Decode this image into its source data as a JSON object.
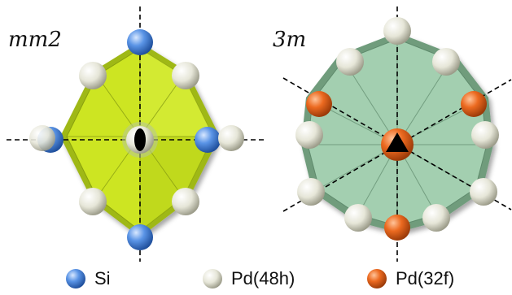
{
  "panels": [
    {
      "symmetry_label": "mm2"
    },
    {
      "symmetry_label": "3m"
    }
  ],
  "legend": [
    {
      "label": "Si",
      "color": "#4a86e0"
    },
    {
      "label": "Pd(48h)",
      "color": "#e2e2d2"
    },
    {
      "label": "Pd(32f)",
      "color": "#e8631c"
    }
  ],
  "colors": {
    "polyhedron_left": "#c9e21e",
    "polyhedron_right": "#9ccaa8",
    "axis_marker": "#000000"
  },
  "icons": {
    "left_axis_marker": "two-fold-ellipse-icon",
    "right_axis_marker": "three-fold-triangle-icon"
  }
}
